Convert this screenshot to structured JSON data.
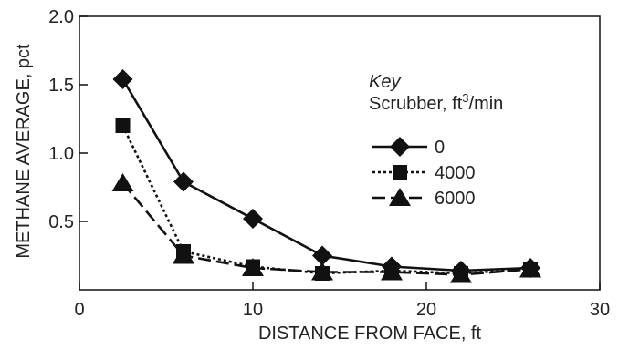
{
  "chart_data": {
    "type": "line",
    "xlabel": "DISTANCE FROM FACE, ft",
    "ylabel": "METHANE AVERAGE, pct",
    "xlim": [
      0,
      30
    ],
    "ylim": [
      0,
      2.0
    ],
    "x_ticks": [
      0,
      10,
      20,
      30
    ],
    "x_tick_labels": [
      "0",
      "10",
      "20",
      "30"
    ],
    "y_ticks": [
      0.5,
      1.0,
      1.5,
      2.0
    ],
    "y_tick_labels": [
      "0.5",
      "1.0",
      "1.5",
      "2.0"
    ],
    "grid": false,
    "legend": {
      "placement": "top-right",
      "title": "Key",
      "subtitle_prefix": "Scrubber, ft",
      "subtitle_sup": "3",
      "subtitle_suffix": "/min"
    },
    "series": [
      {
        "name": "0",
        "marker": "diamond",
        "line": "solid",
        "x": [
          2.5,
          6,
          10,
          14,
          18,
          22,
          26
        ],
        "y": [
          1.54,
          0.79,
          0.52,
          0.25,
          0.17,
          0.14,
          0.16
        ]
      },
      {
        "name": "4000",
        "marker": "square",
        "line": "dotted",
        "x": [
          2.5,
          6,
          10,
          14,
          18,
          22,
          26
        ],
        "y": [
          1.2,
          0.28,
          0.17,
          0.12,
          0.14,
          0.12,
          0.15
        ]
      },
      {
        "name": "6000",
        "marker": "triangle",
        "line": "dashed",
        "x": [
          2.5,
          6,
          10,
          14,
          18,
          22,
          26
        ],
        "y": [
          0.78,
          0.25,
          0.16,
          0.13,
          0.13,
          0.11,
          0.15
        ]
      }
    ]
  }
}
